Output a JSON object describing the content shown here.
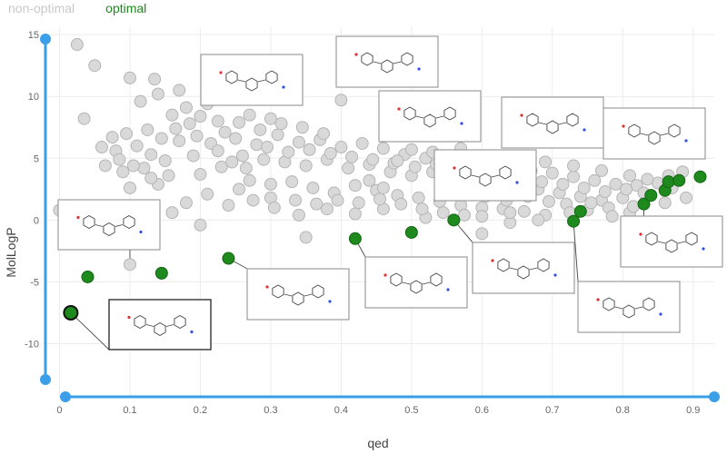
{
  "legend": {
    "items": [
      {
        "label": "non-optimal",
        "color": "#c8c8c8"
      },
      {
        "label": "optimal",
        "color": "#1e8a1e"
      }
    ]
  },
  "chart_data": {
    "type": "scatter",
    "xlabel": "qed",
    "ylabel": "MolLogP",
    "xlim": [
      -0.02,
      0.93
    ],
    "ylim": [
      -14.3,
      15.6
    ],
    "xticks": [
      "0",
      "0.1",
      "0.2",
      "0.3",
      "0.4",
      "0.5",
      "0.6",
      "0.7",
      "0.8",
      "0.9"
    ],
    "yticks": [
      "15",
      "10",
      "5",
      "0",
      "-5",
      "-10"
    ],
    "grid": true,
    "series": [
      {
        "name": "non-optimal",
        "color": "#d9d9d9",
        "points": [
          [
            0.025,
            14.2
          ],
          [
            0.05,
            12.5
          ],
          [
            0.035,
            8.2
          ],
          [
            0.1,
            11.5
          ],
          [
            0.135,
            11.4
          ],
          [
            0.115,
            9.6
          ],
          [
            0.14,
            10.2
          ],
          [
            0.17,
            10.5
          ],
          [
            0.16,
            8.5
          ],
          [
            0.185,
            7.8
          ],
          [
            0.21,
            9.4
          ],
          [
            0.24,
            11.2
          ],
          [
            0.27,
            8.5
          ],
          [
            0.3,
            8.2
          ],
          [
            0.4,
            9.7
          ],
          [
            0.075,
            6.7
          ],
          [
            0.08,
            5.6
          ],
          [
            0.11,
            6.0
          ],
          [
            0.13,
            5.3
          ],
          [
            0.15,
            4.8
          ],
          [
            0.17,
            6.4
          ],
          [
            0.19,
            5.2
          ],
          [
            0.09,
            3.9
          ],
          [
            0.12,
            4.2
          ],
          [
            0.155,
            3.6
          ],
          [
            0.1,
            2.6
          ],
          [
            0.14,
            2.9
          ],
          [
            0.2,
            3.7
          ],
          [
            0.23,
            4.3
          ],
          [
            0.25,
            6.6
          ],
          [
            0.28,
            6.1
          ],
          [
            0.31,
            6.9
          ],
          [
            0.34,
            6.3
          ],
          [
            0.37,
            6.5
          ],
          [
            0.4,
            5.9
          ],
          [
            0.43,
            6.2
          ],
          [
            0.46,
            5.8
          ],
          [
            0.49,
            5.3
          ],
          [
            0.52,
            5.0
          ],
          [
            0.55,
            4.8
          ],
          [
            0.58,
            4.6
          ],
          [
            0.61,
            4.4
          ],
          [
            0.64,
            4.1
          ],
          [
            0.67,
            4.0
          ],
          [
            0.7,
            3.8
          ],
          [
            0.73,
            3.5
          ],
          [
            0.76,
            3.2
          ],
          [
            0.79,
            2.9
          ],
          [
            0.82,
            2.8
          ],
          [
            0.85,
            3.0
          ],
          [
            0.26,
            5.2
          ],
          [
            0.29,
            4.9
          ],
          [
            0.32,
            4.7
          ],
          [
            0.35,
            4.4
          ],
          [
            0.38,
            4.9
          ],
          [
            0.41,
            4.2
          ],
          [
            0.44,
            4.5
          ],
          [
            0.47,
            3.9
          ],
          [
            0.5,
            3.6
          ],
          [
            0.53,
            3.9
          ],
          [
            0.56,
            3.4
          ],
          [
            0.59,
            3.2
          ],
          [
            0.62,
            3.0
          ],
          [
            0.65,
            2.7
          ],
          [
            0.68,
            2.5
          ],
          [
            0.71,
            2.2
          ],
          [
            0.74,
            1.9
          ],
          [
            0.77,
            1.6
          ],
          [
            0.8,
            1.8
          ],
          [
            0.83,
            2.2
          ],
          [
            0.27,
            3.2
          ],
          [
            0.3,
            2.9
          ],
          [
            0.33,
            3.1
          ],
          [
            0.36,
            2.6
          ],
          [
            0.39,
            2.2
          ],
          [
            0.42,
            2.8
          ],
          [
            0.45,
            2.4
          ],
          [
            0.48,
            2.0
          ],
          [
            0.51,
            1.8
          ],
          [
            0.54,
            1.5
          ],
          [
            0.57,
            1.2
          ],
          [
            0.6,
            1.0
          ],
          [
            0.63,
            0.9
          ],
          [
            0.66,
            0.7
          ],
          [
            0.69,
            0.4
          ],
          [
            0.72,
            1.3
          ],
          [
            0.75,
            0.8
          ],
          [
            0.78,
            1.0
          ],
          [
            0.81,
            0.6
          ],
          [
            0.3,
            1.8
          ],
          [
            0.34,
            0.4
          ],
          [
            0.38,
            0.9
          ],
          [
            0.42,
            0.5
          ],
          [
            0.46,
            0.9
          ],
          [
            0.52,
            0.2
          ],
          [
            0.56,
            0.0
          ],
          [
            0.6,
            0.3
          ],
          [
            0.64,
            -0.2
          ],
          [
            0.68,
            0.0
          ],
          [
            0.24,
            1.2
          ],
          [
            0.21,
            2.1
          ],
          [
            0.18,
            1.4
          ],
          [
            0.16,
            0.6
          ],
          [
            0.2,
            -0.4
          ],
          [
            0.235,
            7.1
          ],
          [
            0.255,
            7.9
          ],
          [
            0.285,
            7.3
          ],
          [
            0.315,
            7.8
          ],
          [
            0.345,
            7.5
          ],
          [
            0.375,
            7.0
          ],
          [
            0.215,
            6.2
          ],
          [
            0.225,
            5.6
          ],
          [
            0.245,
            4.7
          ],
          [
            0.265,
            4.2
          ],
          [
            0.295,
            5.9
          ],
          [
            0.325,
            5.5
          ],
          [
            0.355,
            5.7
          ],
          [
            0.385,
            5.4
          ],
          [
            0.415,
            5.1
          ],
          [
            0.445,
            4.9
          ],
          [
            0.475,
            4.6
          ],
          [
            0.505,
            4.3
          ],
          [
            0.535,
            4.5
          ],
          [
            0.565,
            4.1
          ],
          [
            0.595,
            3.9
          ],
          [
            0.625,
            3.7
          ],
          [
            0.655,
            3.4
          ],
          [
            0.685,
            3.1
          ],
          [
            0.715,
            2.9
          ],
          [
            0.745,
            2.6
          ],
          [
            0.775,
            2.3
          ],
          [
            0.805,
            2.5
          ],
          [
            0.835,
            3.3
          ],
          [
            0.865,
            3.6
          ],
          [
            0.885,
            3.9
          ],
          [
            0.84,
            2.0
          ],
          [
            0.86,
            1.4
          ],
          [
            0.255,
            2.5
          ],
          [
            0.275,
            1.6
          ],
          [
            0.305,
            1.0
          ],
          [
            0.335,
            1.6
          ],
          [
            0.365,
            1.3
          ],
          [
            0.395,
            1.6
          ],
          [
            0.425,
            1.4
          ],
          [
            0.455,
            1.7
          ],
          [
            0.485,
            1.3
          ],
          [
            0.515,
            0.9
          ],
          [
            0.545,
            0.6
          ],
          [
            0.575,
            0.4
          ],
          [
            0.605,
            1.9
          ],
          [
            0.635,
            1.6
          ],
          [
            0.665,
            1.9
          ],
          [
            0.695,
            1.5
          ],
          [
            0.725,
            0.6
          ],
          [
            0.755,
            1.4
          ],
          [
            0.785,
            0.3
          ],
          [
            0.815,
            1.1
          ],
          [
            0.18,
            9.1
          ],
          [
            0.2,
            8.4
          ],
          [
            0.225,
            8.0
          ],
          [
            0.165,
            7.4
          ],
          [
            0.195,
            6.8
          ],
          [
            0.145,
            6.6
          ],
          [
            0.125,
            7.3
          ],
          [
            0.095,
            7.0
          ],
          [
            0.06,
            5.9
          ],
          [
            0.085,
            4.9
          ],
          [
            0.105,
            4.4
          ],
          [
            0.13,
            3.4
          ],
          [
            0.065,
            4.4
          ],
          [
            0.1,
            -3.6
          ],
          [
            0.0,
            0.8
          ],
          [
            0.35,
            -1.4
          ],
          [
            0.6,
            -1.1
          ],
          [
            0.64,
            0.6
          ],
          [
            0.46,
            2.6
          ],
          [
            0.44,
            3.2
          ],
          [
            0.48,
            4.8
          ],
          [
            0.5,
            5.7
          ],
          [
            0.53,
            5.5
          ],
          [
            0.57,
            5.8
          ],
          [
            0.61,
            5.2
          ],
          [
            0.65,
            4.9
          ],
          [
            0.69,
            4.7
          ],
          [
            0.73,
            4.4
          ],
          [
            0.77,
            4.0
          ],
          [
            0.81,
            3.6
          ],
          [
            0.87,
            2.6
          ],
          [
            0.89,
            1.8
          ]
        ]
      },
      {
        "name": "optimal",
        "color": "#1e8a1e",
        "points": [
          [
            0.04,
            -4.6
          ],
          [
            0.145,
            -4.3
          ],
          [
            0.24,
            -3.1
          ],
          [
            0.42,
            -1.5
          ],
          [
            0.5,
            -1.0
          ],
          [
            0.56,
            0.0
          ],
          [
            0.73,
            -0.1
          ],
          [
            0.74,
            0.7
          ],
          [
            0.83,
            1.3
          ],
          [
            0.84,
            2.0
          ],
          [
            0.86,
            2.4
          ],
          [
            0.865,
            3.1
          ],
          [
            0.88,
            3.2
          ],
          [
            0.91,
            3.5
          ],
          [
            0.016,
            -7.5
          ]
        ]
      }
    ],
    "structure_callouts": [
      {
        "point": [
          0.016,
          -7.5
        ],
        "highlighted": true
      },
      {
        "point": [
          0.1,
          -3.6
        ]
      },
      {
        "point": [
          0.24,
          -3.1
        ]
      },
      {
        "point": [
          0.42,
          -1.5
        ]
      },
      {
        "point": [
          0.56,
          0.0
        ]
      },
      {
        "point": [
          0.73,
          -0.1
        ]
      },
      {
        "point": [
          0.83,
          1.3
        ]
      }
    ]
  }
}
